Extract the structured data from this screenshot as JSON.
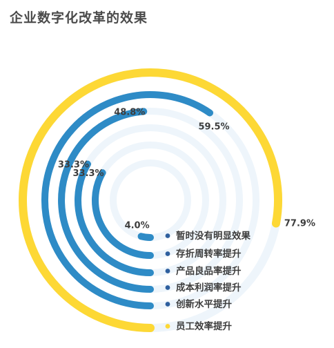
{
  "title": "企业数字化改革的效果",
  "chart_data": {
    "type": "radial-bar",
    "title": "企业数字化改革的效果",
    "unit": "%",
    "categories": [
      "暂时没有明显效果",
      "存折周转率提升",
      "产品良品率提升",
      "成本利润率提升",
      "创新水平提升",
      "员工效率提升"
    ],
    "values": [
      4.0,
      33.3,
      33.3,
      48.8,
      59.5,
      77.9
    ],
    "labels": [
      "4.0%",
      "33.3%",
      "33.3%",
      "48.8%",
      "59.5%",
      "77.9%"
    ],
    "colors": [
      "#2e8bc6",
      "#2e8bc6",
      "#2e8bc6",
      "#2e8bc6",
      "#2e8bc6",
      "#fdd835"
    ],
    "track_color": "#eef5fb",
    "legend_marker_colors": [
      "#2e5f9e",
      "#2e5f9e",
      "#2e5f9e",
      "#2e5f9e",
      "#2e5f9e",
      "#fdd835"
    ],
    "legend_position": "bottom-right"
  }
}
